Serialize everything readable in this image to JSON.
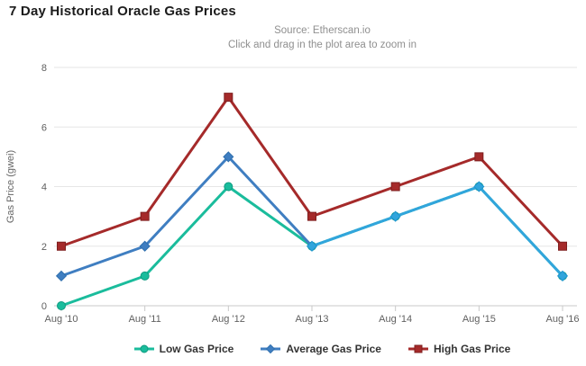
{
  "chart_data": {
    "type": "line",
    "title": "7 Day Historical Oracle Gas Prices",
    "subtitle_line1": "Source: Etherscan.io",
    "subtitle_line2": "Click and drag in the plot area to zoom in",
    "ylabel": "Gas Price (gwei)",
    "xlabel": "",
    "ylim": [
      0,
      8
    ],
    "yticks": [
      0,
      2,
      4,
      6,
      8
    ],
    "grid": "horizontal",
    "legend_position": "bottom",
    "categories": [
      "Aug '10",
      "Aug '11",
      "Aug '12",
      "Aug '13",
      "Aug '14",
      "Aug '15",
      "Aug '16"
    ],
    "series": [
      {
        "name": "Low Gas Price",
        "marker": "circle",
        "color": "#1ABC9C",
        "marker_stroke": "#0E9B80",
        "values": [
          0,
          1,
          4,
          2,
          3,
          4,
          1
        ]
      },
      {
        "name": "Average Gas Price",
        "marker": "diamond",
        "color": "#3F7EC1",
        "marker_stroke": "#2F6FAE",
        "values": [
          1,
          2,
          5,
          2,
          3,
          4,
          1
        ]
      },
      {
        "name": "High Gas Price",
        "marker": "square",
        "color": "#A52A2A",
        "marker_stroke": "#7E1F1F",
        "values": [
          2,
          3,
          7,
          3,
          4,
          5,
          2
        ]
      }
    ],
    "overlap_color": "#31A5DC",
    "overlap_stroke": "#1E96CE"
  },
  "style_colors": {
    "grid": "#E6E6E6",
    "axis_line": "#C9C9C9",
    "tick": "#C9C9C9",
    "axis_label": "#606060",
    "axis_title": "#666666",
    "subtitle": "#8F8F8F",
    "title": "#1B1B1B",
    "legend_text": "#333333"
  }
}
